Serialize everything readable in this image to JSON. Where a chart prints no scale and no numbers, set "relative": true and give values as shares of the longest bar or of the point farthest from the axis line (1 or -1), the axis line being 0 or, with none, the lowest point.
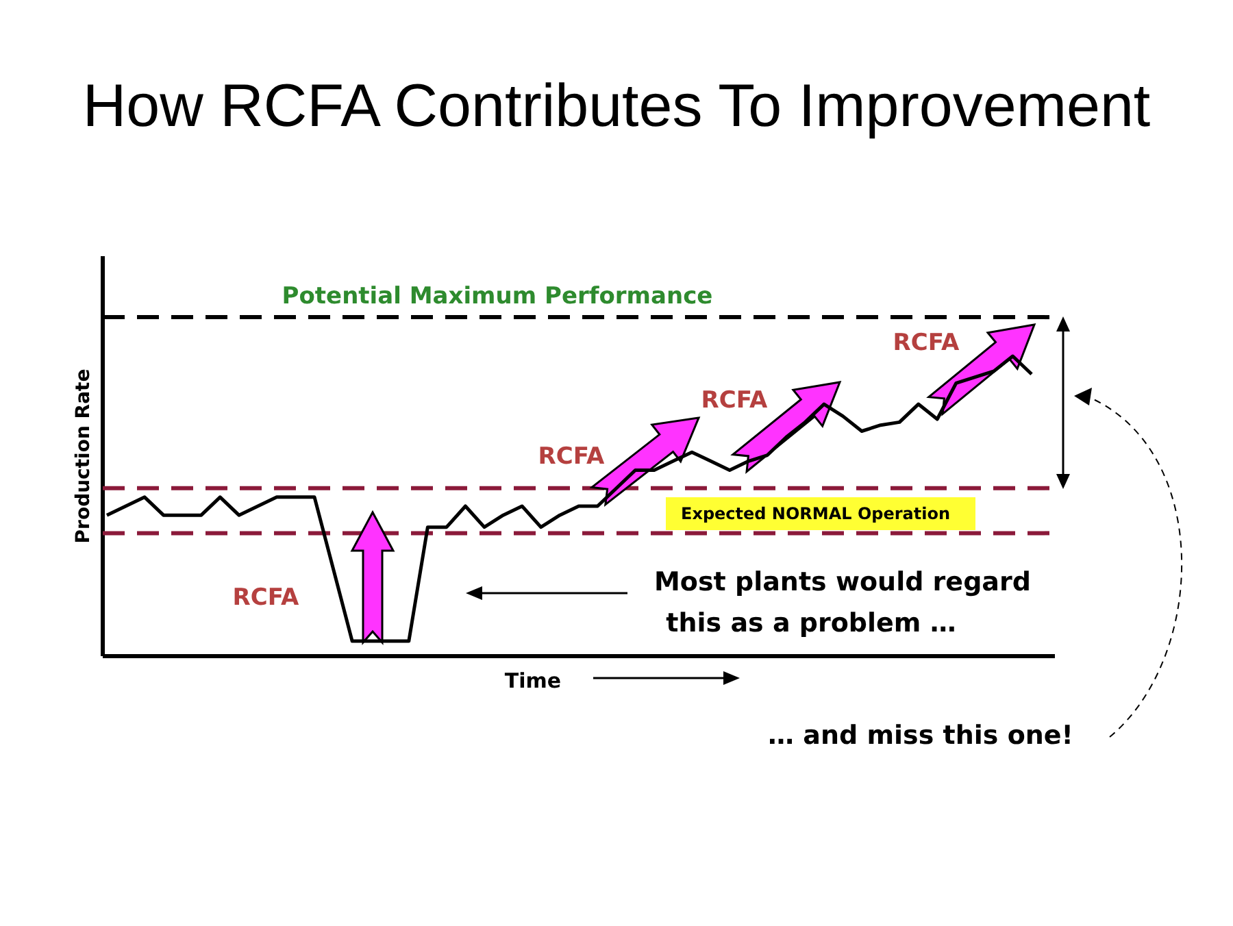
{
  "chart_data": {
    "type": "line",
    "relative": true,
    "title": "How RCFA Contributes To Improvement",
    "xlabel": "Time",
    "ylabel": "Production Rate",
    "marker": "none",
    "line_style": "solid",
    "categories": [
      null,
      null,
      null,
      null,
      null,
      null,
      null,
      null,
      null,
      null,
      null,
      null,
      null,
      null,
      null,
      null,
      null,
      null,
      null,
      null,
      null,
      null,
      null,
      null,
      null,
      null,
      null,
      null,
      null,
      null,
      null,
      null,
      null,
      null,
      null,
      null,
      null,
      null,
      null,
      null,
      null,
      null,
      null,
      null,
      null,
      null,
      null,
      null,
      null,
      null
    ],
    "series": [
      {
        "color": "#000000",
        "values": [
          0.47,
          0.5,
          0.53,
          0.47,
          0.47,
          0.47,
          0.53,
          0.47,
          0.5,
          0.53,
          0.53,
          0.53,
          0.29,
          0.05,
          0.05,
          0.05,
          0.05,
          0.43,
          0.43,
          0.5,
          0.43,
          0.47,
          0.5,
          0.43,
          0.47,
          0.5,
          0.5,
          0.56,
          0.62,
          0.62,
          0.65,
          0.68,
          0.65,
          0.62,
          0.65,
          0.67,
          0.73,
          0.78,
          0.84,
          0.8,
          0.75,
          0.77,
          0.78,
          0.84,
          0.79,
          0.91,
          0.93,
          0.95,
          1,
          0.94
        ]
      }
    ],
    "ref_lines": [
      {
        "axis": "y",
        "value": 1.13,
        "label": "Potential Maximum Performance",
        "color": "#000000",
        "line_style": "dashed"
      },
      {
        "axis": "y",
        "value": 0.56,
        "color": "#8b1a3a",
        "line_style": "dashed"
      },
      {
        "axis": "y",
        "value": 0.41,
        "color": "#8b1a3a",
        "line_style": "dashed"
      }
    ],
    "annotations": [
      "RCFA",
      "RCFA",
      "RCFA",
      "RCFA",
      "Most plants would regard this as a problem …",
      "… and miss this one!",
      "Expected NORMAL Operation"
    ]
  }
}
